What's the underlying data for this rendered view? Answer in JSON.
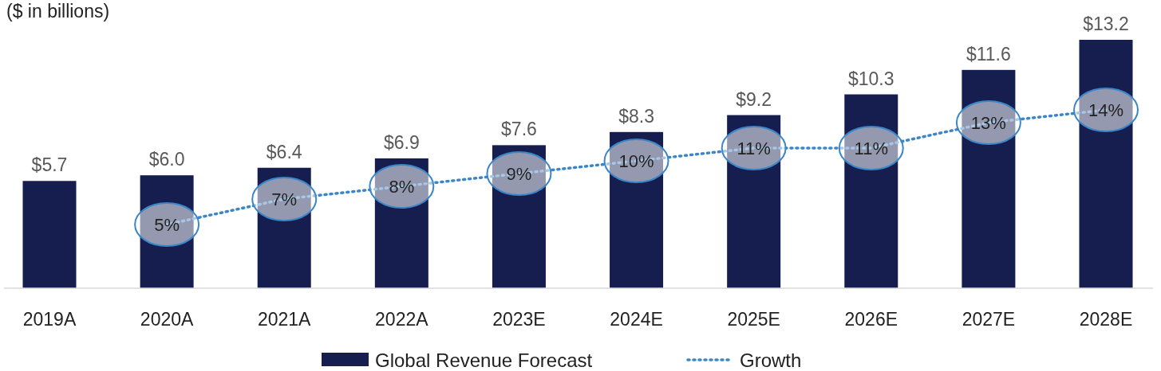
{
  "chart_data": {
    "type": "bar",
    "ylabel": "($ in billions)",
    "categories": [
      "2019A",
      "2020A",
      "2021A",
      "2022A",
      "2023E",
      "2024E",
      "2025E",
      "2026E",
      "2027E",
      "2028E"
    ],
    "series": [
      {
        "name": "Global Revenue Forecast",
        "color": "#161d4f",
        "values": [
          5.7,
          6.0,
          6.4,
          6.9,
          7.6,
          8.3,
          9.2,
          10.3,
          11.6,
          13.2
        ],
        "value_labels": [
          "$5.7",
          "$6.0",
          "$6.4",
          "$6.9",
          "$7.6",
          "$8.3",
          "$9.2",
          "$10.3",
          "$11.6",
          "$13.2"
        ]
      },
      {
        "name": "Growth",
        "type": "line",
        "axis": "y2",
        "color": "#3a86c8",
        "values": [
          null,
          5,
          7,
          8,
          9,
          10,
          11,
          11,
          13,
          14
        ],
        "value_labels": [
          null,
          "5%",
          "7%",
          "8%",
          "9%",
          "10%",
          "11%",
          "11%",
          "13%",
          "14%"
        ]
      }
    ],
    "line_style": "dotted",
    "legend": "bottom"
  }
}
